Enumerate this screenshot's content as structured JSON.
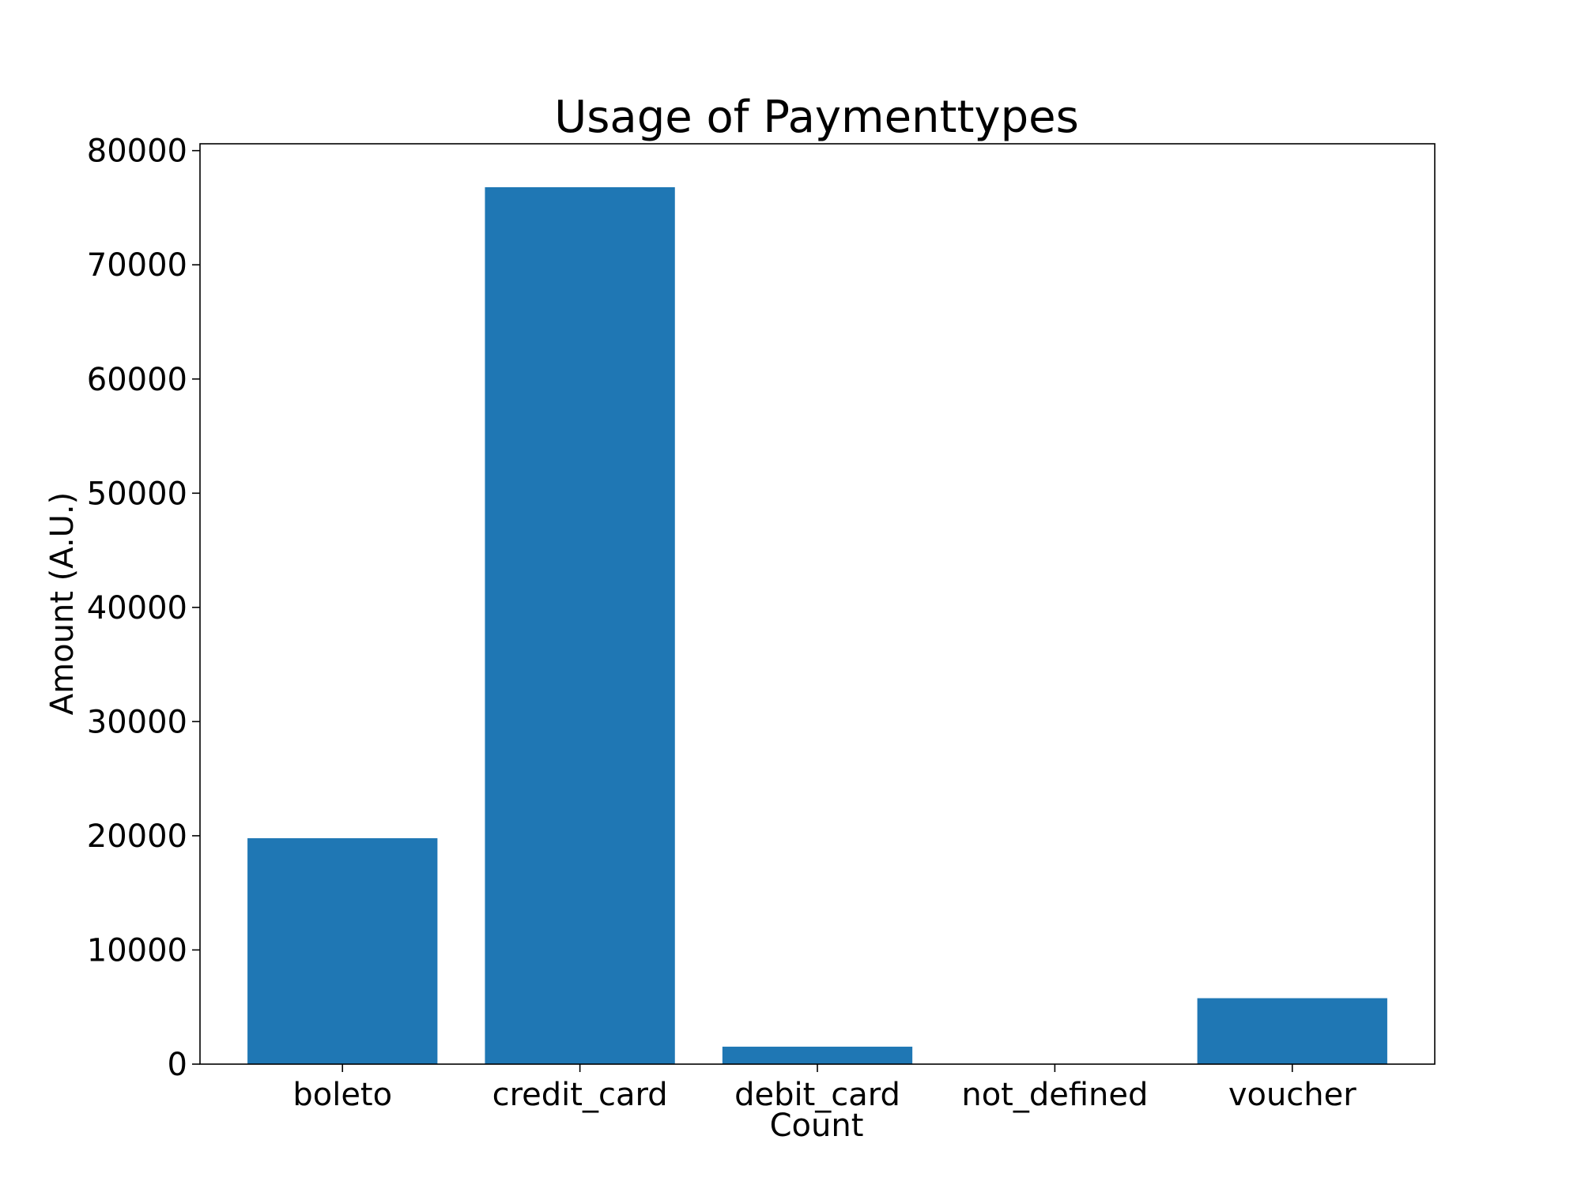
{
  "chart_data": {
    "type": "bar",
    "title": "Usage of Paymenttypes",
    "xlabel": "Count",
    "ylabel": "Amount (A.U.)",
    "categories": [
      "boleto",
      "credit_card",
      "debit_card",
      "not_defined",
      "voucher"
    ],
    "values": [
      19784,
      76795,
      1529,
      3,
      5775
    ],
    "ylim": [
      0,
      80600
    ],
    "yticks": [
      0,
      10000,
      20000,
      30000,
      40000,
      50000,
      60000,
      70000,
      80000
    ],
    "ytick_labels": [
      "0",
      "10000",
      "20000",
      "30000",
      "40000",
      "50000",
      "60000",
      "70000",
      "80000"
    ],
    "bar_color": "#1f77b4",
    "grid": false,
    "legend": "none"
  }
}
